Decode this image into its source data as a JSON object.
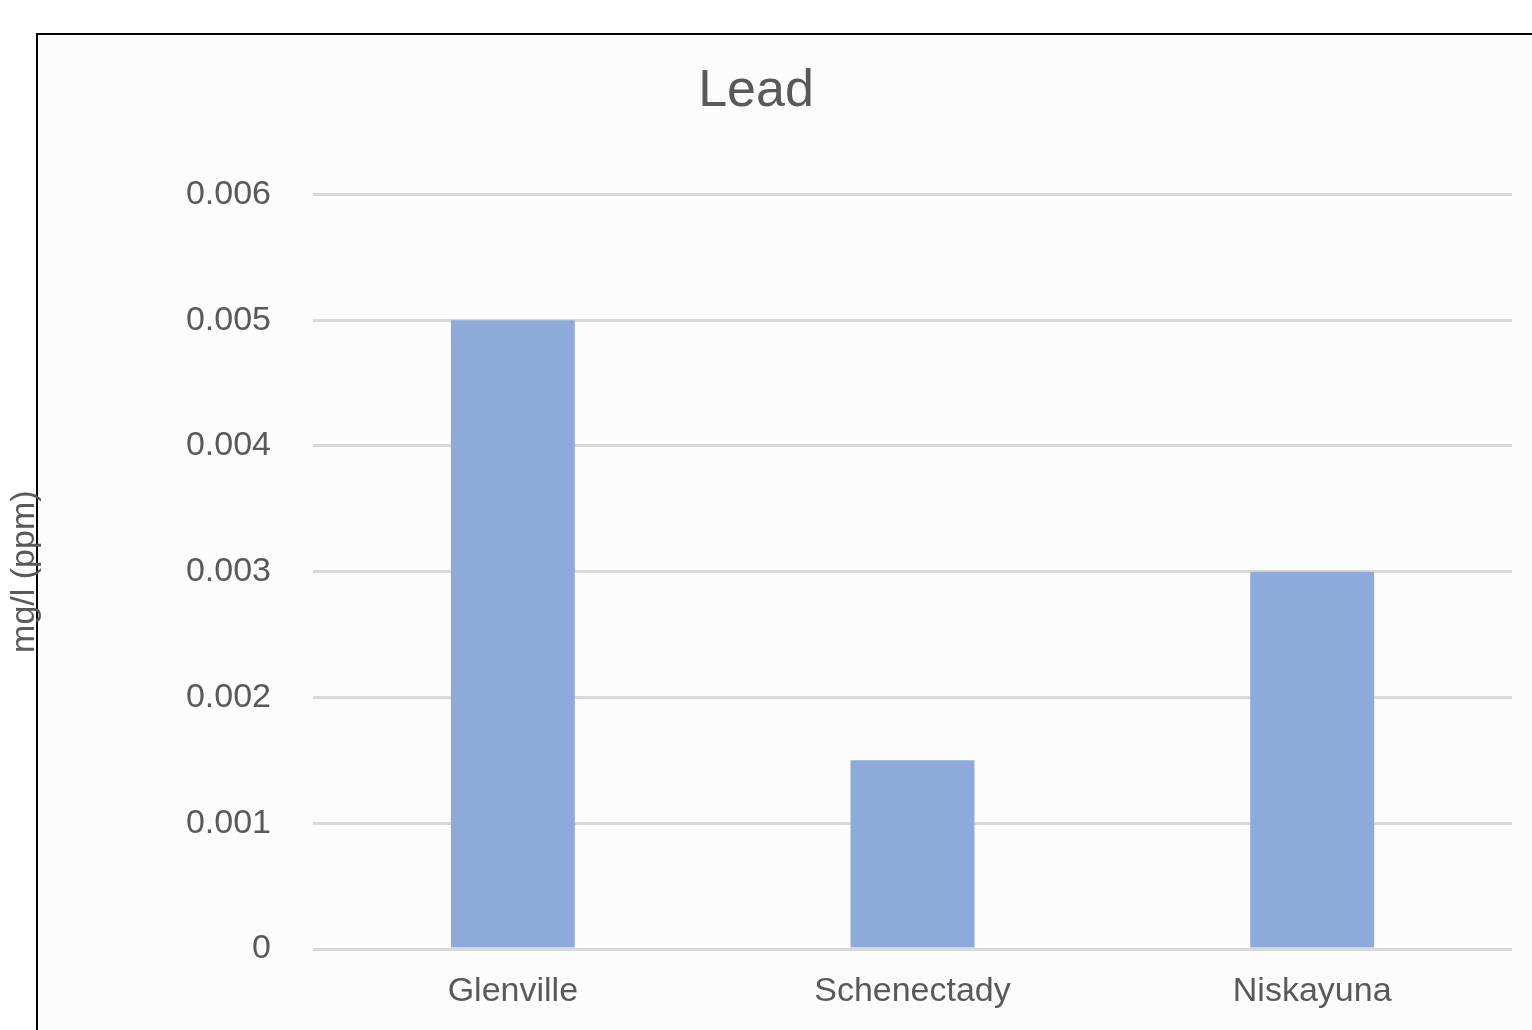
{
  "chart_data": {
    "type": "bar",
    "title": "Lead",
    "ylabel": "mg/l (ppm)",
    "categories": [
      "Glenville",
      "Schenectady",
      "Niskayuna"
    ],
    "values": [
      0.005,
      0.0015,
      0.003
    ],
    "color": "#8eaadb",
    "ylim": [
      0,
      0.006
    ],
    "yticks": [
      0,
      0.001,
      0.002,
      0.003,
      0.004,
      0.005,
      0.006
    ],
    "grid": "y",
    "legend": false
  }
}
